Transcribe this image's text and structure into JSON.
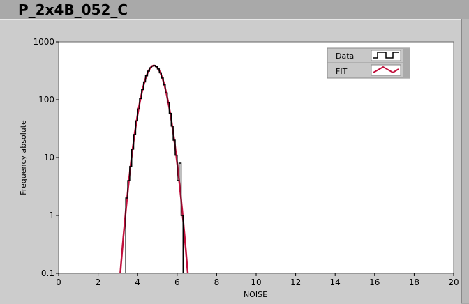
{
  "window": {
    "title": "P_2x4B_052_C"
  },
  "chart_data": {
    "type": "line",
    "xlabel": "NOISE",
    "ylabel": "Frequency absolute",
    "xlim": [
      0,
      20
    ],
    "ylim": [
      0.1,
      1000
    ],
    "yscale": "log",
    "grid": false,
    "legend_placement": "top-right",
    "x_ticks": [
      "0",
      "2",
      "4",
      "6",
      "8",
      "10",
      "12",
      "14",
      "16",
      "18",
      "20"
    ],
    "y_ticks": [
      "0.1",
      "1",
      "10",
      "100",
      "1000"
    ],
    "series": [
      {
        "name": "Data",
        "style": "step",
        "color": "#000000",
        "bin_edges_start": 3.4,
        "bin_width": 0.1,
        "values": [
          2,
          4,
          7,
          14,
          25,
          43,
          69,
          105,
          150,
          203,
          259,
          312,
          356,
          383,
          390,
          374,
          340,
          292,
          237,
          181,
          131,
          90,
          58,
          35,
          20,
          11,
          4,
          8,
          1
        ]
      },
      {
        "name": "FIT",
        "style": "line",
        "color": "#c0103c",
        "model": "gaussian",
        "amplitude": 390,
        "mean": 4.83,
        "sigma": 0.42
      }
    ]
  }
}
